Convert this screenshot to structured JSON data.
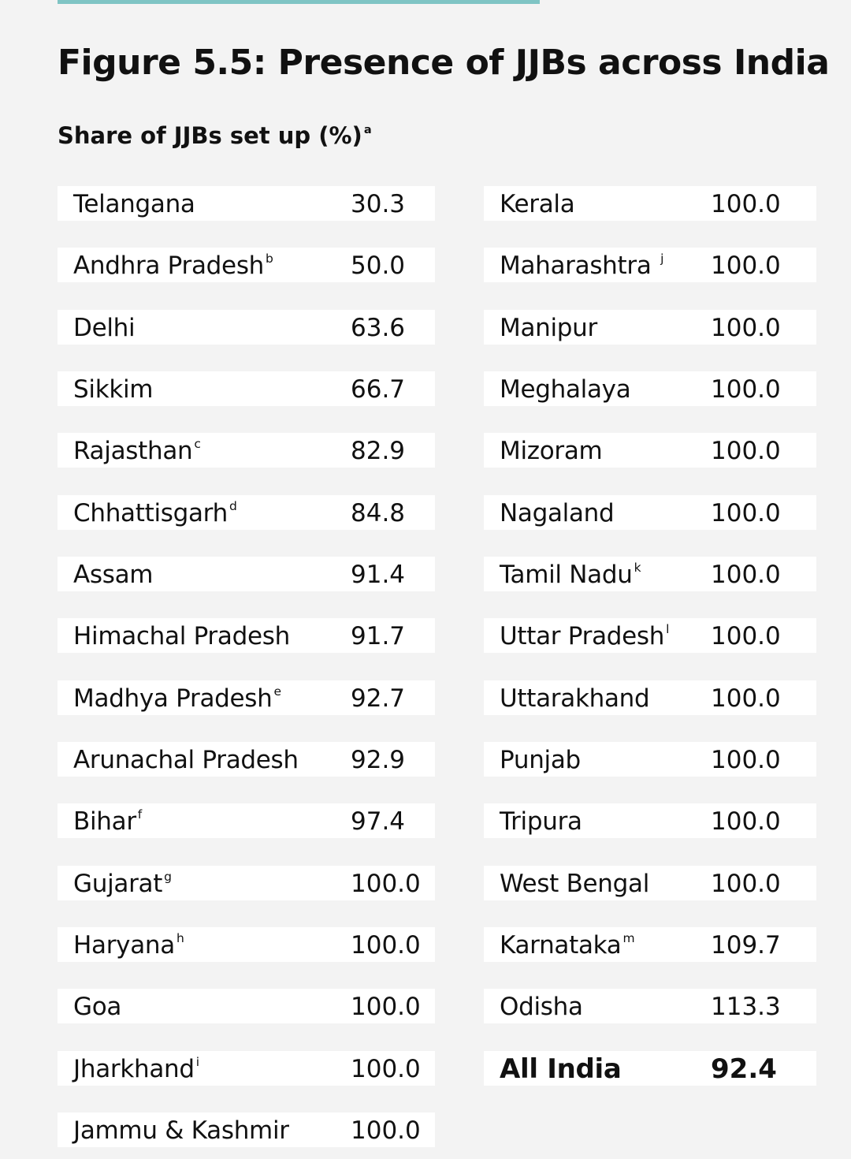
{
  "chart_data": {
    "type": "table",
    "title": "Figure 5.5: Presence of JJBs across India",
    "subtitle": "Share of JJBs set up (%)",
    "subtitle_footnote": "a",
    "columns": [
      [
        {
          "state": "Telangana",
          "footnote": "",
          "value": "30.3"
        },
        {
          "state": "Andhra Pradesh",
          "footnote": "b",
          "value": "50.0"
        },
        {
          "state": "Delhi",
          "footnote": "",
          "value": "63.6"
        },
        {
          "state": "Sikkim",
          "footnote": "",
          "value": "66.7"
        },
        {
          "state": "Rajasthan",
          "footnote": "c",
          "value": "82.9"
        },
        {
          "state": "Chhattisgarh",
          "footnote": "d",
          "value": "84.8"
        },
        {
          "state": "Assam",
          "footnote": "",
          "value": "91.4"
        },
        {
          "state": "Himachal Pradesh",
          "footnote": "",
          "value": "91.7"
        },
        {
          "state": "Madhya Pradesh",
          "footnote": "e",
          "value": "92.7"
        },
        {
          "state": "Arunachal Pradesh",
          "footnote": "",
          "value": "92.9"
        },
        {
          "state": "Bihar",
          "footnote": "f",
          "value": "97.4"
        },
        {
          "state": "Gujarat",
          "footnote": "g",
          "value": "100.0"
        },
        {
          "state": "Haryana",
          "footnote": "h",
          "value": "100.0"
        },
        {
          "state": "Goa",
          "footnote": "",
          "value": "100.0"
        },
        {
          "state": "Jharkhand",
          "footnote": "i",
          "value": "100.0"
        },
        {
          "state": "Jammu & Kashmir",
          "footnote": "",
          "value": "100.0"
        }
      ],
      [
        {
          "state": "Kerala",
          "footnote": "",
          "value": "100.0"
        },
        {
          "state": "Maharashtra ",
          "footnote": "j",
          "value": "100.0"
        },
        {
          "state": "Manipur",
          "footnote": "",
          "value": "100.0"
        },
        {
          "state": "Meghalaya",
          "footnote": "",
          "value": "100.0"
        },
        {
          "state": "Mizoram",
          "footnote": "",
          "value": "100.0"
        },
        {
          "state": "Nagaland",
          "footnote": "",
          "value": "100.0"
        },
        {
          "state": "Tamil Nadu",
          "footnote": "k",
          "value": "100.0"
        },
        {
          "state": "Uttar Pradesh",
          "footnote": "l",
          "value": "100.0"
        },
        {
          "state": "Uttarakhand",
          "footnote": "",
          "value": "100.0"
        },
        {
          "state": "Punjab",
          "footnote": "",
          "value": "100.0"
        },
        {
          "state": "Tripura",
          "footnote": "",
          "value": "100.0"
        },
        {
          "state": "West Bengal",
          "footnote": "",
          "value": "100.0"
        },
        {
          "state": "Karnataka",
          "footnote": "m",
          "value": "109.7"
        },
        {
          "state": "Odisha",
          "footnote": "",
          "value": "113.3"
        },
        {
          "state": "All India",
          "footnote": "",
          "value": "92.4",
          "total": true
        }
      ]
    ]
  },
  "colors": {
    "accent_bar": "#7fc4c4",
    "background": "#f3f3f3",
    "row_background": "#ffffff",
    "text": "#111111"
  }
}
